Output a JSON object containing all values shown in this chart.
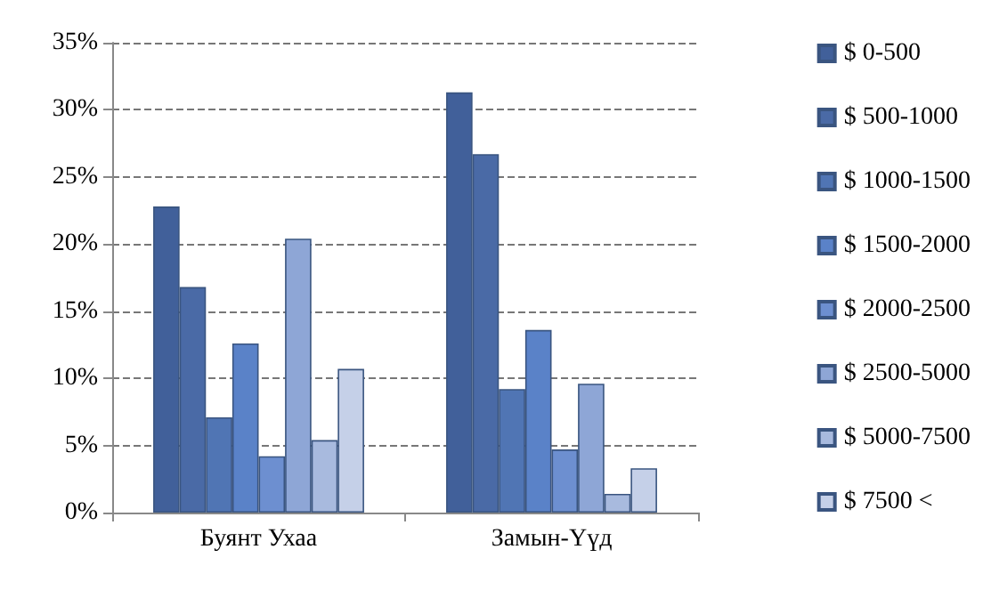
{
  "chart_data": {
    "type": "bar",
    "categories": [
      "Буянт Ухаа",
      "Замын-Үүд"
    ],
    "series": [
      {
        "name": "$ 0-500",
        "color": "#41609a",
        "values": [
          22.8,
          31.3
        ]
      },
      {
        "name": "$ 500-1000",
        "color": "#4a6aa6",
        "values": [
          16.8,
          26.7
        ]
      },
      {
        "name": "$ 1000-1500",
        "color": "#5075b4",
        "values": [
          7.1,
          9.2
        ]
      },
      {
        "name": "$ 1500-2000",
        "color": "#5a82c8",
        "values": [
          12.6,
          13.6
        ]
      },
      {
        "name": "$ 2000-2500",
        "color": "#6d8fd0",
        "values": [
          4.2,
          4.7
        ]
      },
      {
        "name": "$ 2500-5000",
        "color": "#8ea6d6",
        "values": [
          20.4,
          9.6
        ]
      },
      {
        "name": "$ 5000-7500",
        "color": "#a8bade",
        "values": [
          5.4,
          1.4
        ]
      },
      {
        "name": "$ 7500 <",
        "color": "#c5d0e8",
        "values": [
          10.7,
          3.3
        ]
      }
    ],
    "ylim": [
      0,
      35
    ],
    "yticks": [
      {
        "value": 0,
        "label": "0%"
      },
      {
        "value": 5,
        "label": "5%"
      },
      {
        "value": 10,
        "label": "10%"
      },
      {
        "value": 15,
        "label": "15%"
      },
      {
        "value": 20,
        "label": "20%"
      },
      {
        "value": 25,
        "label": "25%"
      },
      {
        "value": 30,
        "label": "30%"
      },
      {
        "value": 35,
        "label": "35%"
      }
    ],
    "grid": "y",
    "legend": "right"
  }
}
